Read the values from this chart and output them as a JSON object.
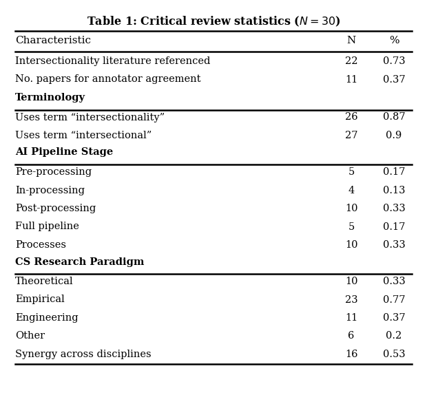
{
  "title": "Table 1: Critical review statistics (",
  "title_italic": "N",
  "title_suffix": " = 30)",
  "columns": [
    "Characteristic",
    "N",
    "%"
  ],
  "sections": [
    {
      "header": null,
      "rows": [
        [
          "Intersectionality literature referenced",
          "22",
          "0.73"
        ],
        [
          "No. papers for annotator agreement",
          "11",
          "0.37"
        ]
      ]
    },
    {
      "header": "Terminology",
      "rows": [
        [
          "Uses term “intersectionality”",
          "26",
          "0.87"
        ],
        [
          "Uses term “intersectional”",
          "27",
          "0.9"
        ]
      ]
    },
    {
      "header": "AI Pipeline Stage",
      "rows": [
        [
          "Pre-processing",
          "5",
          "0.17"
        ],
        [
          "In-processing",
          "4",
          "0.13"
        ],
        [
          "Post-processing",
          "10",
          "0.33"
        ],
        [
          "Full pipeline",
          "5",
          "0.17"
        ],
        [
          "Processes",
          "10",
          "0.33"
        ]
      ]
    },
    {
      "header": "CS Research Paradigm",
      "rows": [
        [
          "Theoretical",
          "10",
          "0.33"
        ],
        [
          "Empirical",
          "23",
          "0.77"
        ],
        [
          "Engineering",
          "11",
          "0.37"
        ],
        [
          "Other",
          "6",
          "0.2"
        ],
        [
          "Synergy across disciplines",
          "16",
          "0.53"
        ]
      ]
    }
  ],
  "bg_color": "#ffffff",
  "text_color": "#000000",
  "title_fontsize": 11.5,
  "col_header_fontsize": 11,
  "body_fontsize": 10.5
}
